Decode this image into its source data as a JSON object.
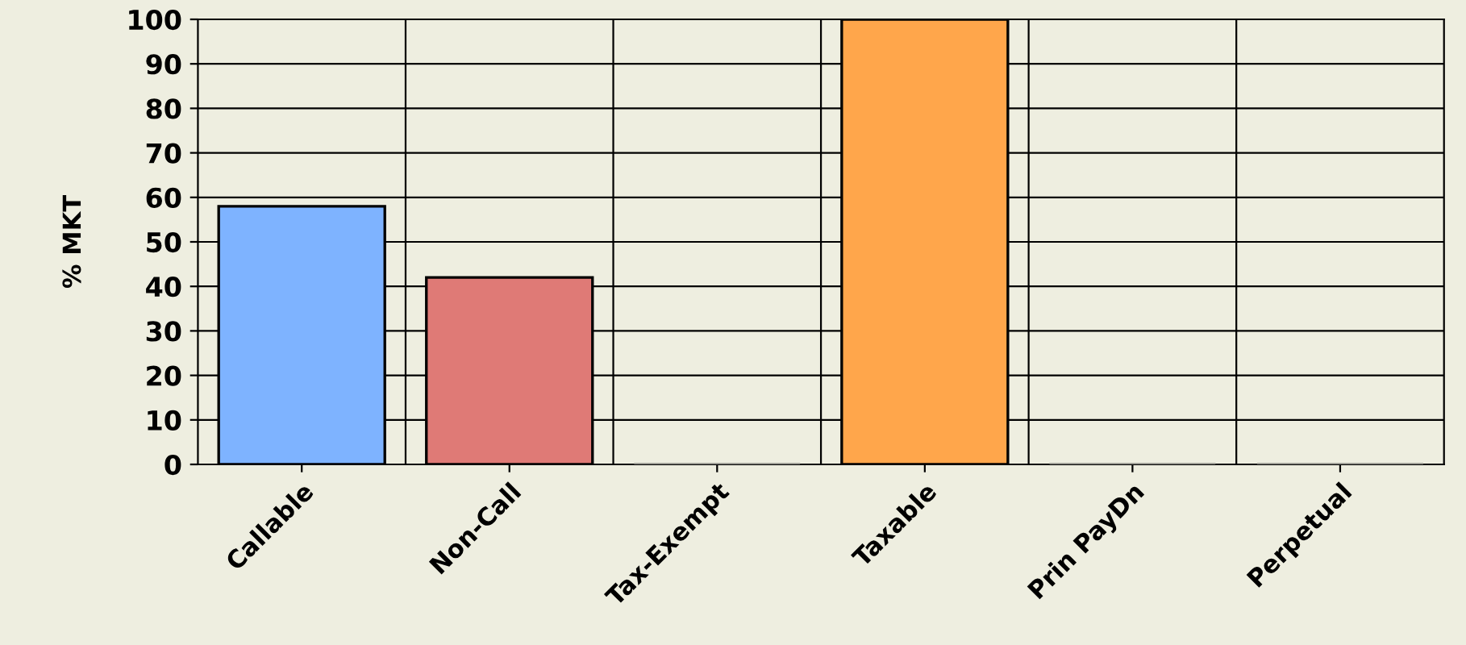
{
  "chart_data": {
    "type": "bar",
    "ylabel": "% MKT",
    "categories": [
      "Callable",
      "Non-Call",
      "Tax-Exempt",
      "Taxable",
      "Prin PayDn",
      "Perpetual"
    ],
    "values": [
      58,
      42,
      0,
      100,
      0,
      0
    ],
    "colors": [
      "#7eb3ff",
      "#df7a76",
      "#8f8f88",
      "#ffa64b",
      "#8f8f88",
      "#8f8f88"
    ],
    "ylim": [
      0,
      100
    ],
    "yticks": [
      0,
      10,
      20,
      30,
      40,
      50,
      60,
      70,
      80,
      90,
      100
    ],
    "grid": true
  }
}
